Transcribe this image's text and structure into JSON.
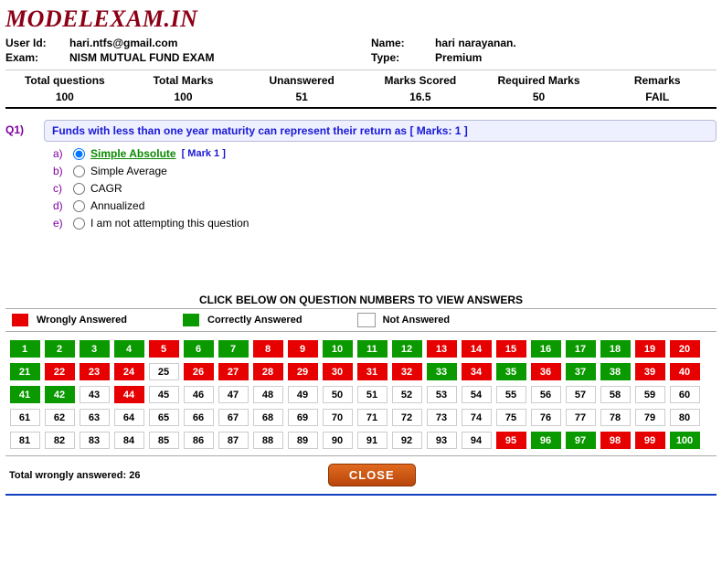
{
  "site_title": "MODELEXAM.IN",
  "info": {
    "user_id_label": "User Id:",
    "user_id": "hari.ntfs@gmail.com",
    "name_label": "Name:",
    "name": "hari narayanan.",
    "exam_label": "Exam:",
    "exam": "NISM MUTUAL FUND EXAM",
    "type_label": "Type:",
    "type": "Premium"
  },
  "summary": [
    {
      "h": "Total questions",
      "v": "100"
    },
    {
      "h": "Total Marks",
      "v": "100"
    },
    {
      "h": "Unanswered",
      "v": "51"
    },
    {
      "h": "Marks Scored",
      "v": "16.5"
    },
    {
      "h": "Required Marks",
      "v": "50"
    },
    {
      "h": "Remarks",
      "v": "FAIL"
    }
  ],
  "question": {
    "no": "Q1)",
    "text": "Funds with less than one year maturity can represent their return as [ Marks: 1 ]",
    "options": [
      {
        "label": "a)",
        "text": "Simple Absolute",
        "checked": true,
        "correct": true,
        "mark": "[ Mark 1 ]"
      },
      {
        "label": "b)",
        "text": "Simple Average",
        "checked": false,
        "correct": false,
        "mark": ""
      },
      {
        "label": "c)",
        "text": "CAGR",
        "checked": false,
        "correct": false,
        "mark": ""
      },
      {
        "label": "d)",
        "text": "Annualized",
        "checked": false,
        "correct": false,
        "mark": ""
      },
      {
        "label": "e)",
        "text": "I am not attempting this question",
        "checked": false,
        "correct": false,
        "mark": ""
      }
    ]
  },
  "qnav": {
    "title": "CLICK BELOW ON QUESTION NUMBERS TO VIEW ANSWERS",
    "legend": {
      "wrong_color": "#e60000",
      "wrong": "Wrongly Answered",
      "correct_color": "#0a9a00",
      "correct": "Correctly Answered",
      "not_color": "#ffffff",
      "not": "Not Answered"
    },
    "status": [
      "g",
      "g",
      "g",
      "g",
      "r",
      "g",
      "g",
      "r",
      "r",
      "g",
      "g",
      "g",
      "r",
      "r",
      "r",
      "g",
      "g",
      "g",
      "r",
      "r",
      "g",
      "r",
      "r",
      "r",
      "n",
      "r",
      "r",
      "r",
      "r",
      "r",
      "r",
      "r",
      "g",
      "r",
      "g",
      "r",
      "g",
      "g",
      "r",
      "r",
      "g",
      "g",
      "n",
      "r",
      "n",
      "n",
      "n",
      "n",
      "n",
      "n",
      "n",
      "n",
      "n",
      "n",
      "n",
      "n",
      "n",
      "n",
      "n",
      "n",
      "n",
      "n",
      "n",
      "n",
      "n",
      "n",
      "n",
      "n",
      "n",
      "n",
      "n",
      "n",
      "n",
      "n",
      "n",
      "n",
      "n",
      "n",
      "n",
      "n",
      "n",
      "n",
      "n",
      "n",
      "n",
      "n",
      "n",
      "n",
      "n",
      "n",
      "n",
      "n",
      "n",
      "n",
      "r",
      "g",
      "g",
      "r",
      "r",
      "g"
    ]
  },
  "footer": {
    "wrong_total_label": "Total wrongly answered:",
    "wrong_total": "26",
    "close": "CLOSE"
  }
}
